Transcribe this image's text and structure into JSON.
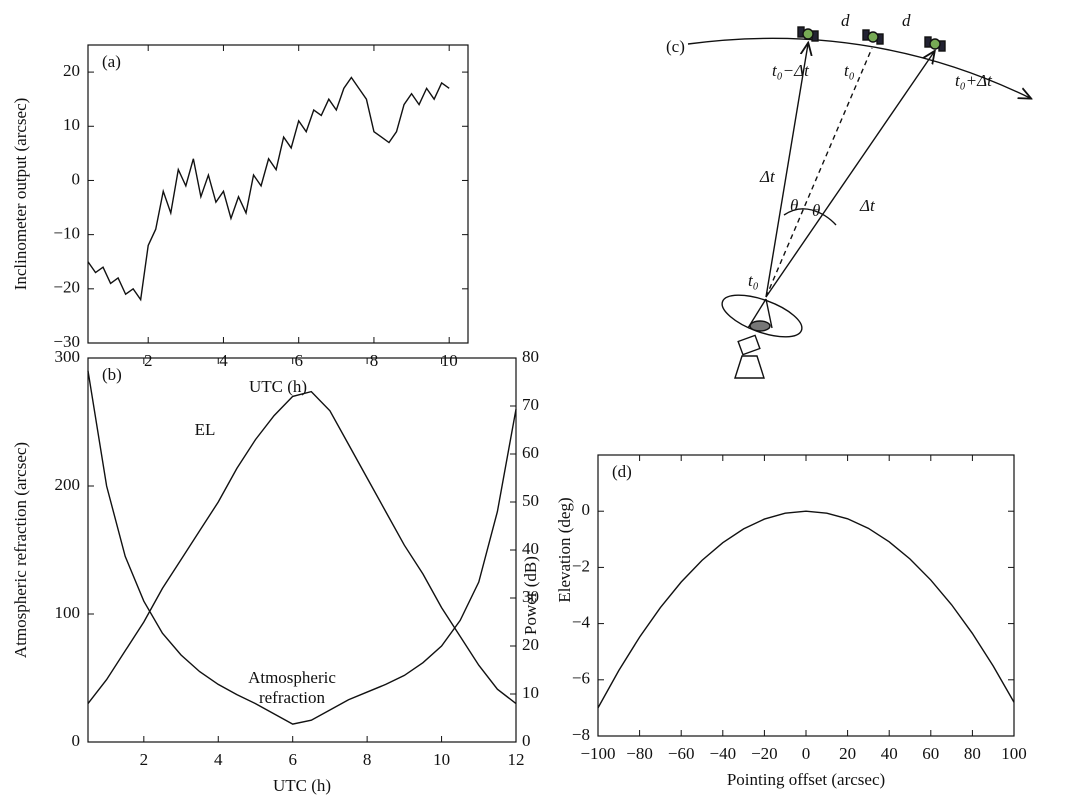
{
  "chart_data": [
    {
      "type": "line",
      "panel_label": "(a)",
      "x_label": "UTC (h)",
      "y_label": "Inclinometer output (arcsec)",
      "xlim": [
        0.4,
        10.5
      ],
      "xticks": [
        2,
        4,
        6,
        8,
        10
      ],
      "ylim": [
        -30,
        25
      ],
      "yticks": [
        {
          "value": -30,
          "label": "−30"
        },
        {
          "value": -20,
          "label": "−20"
        },
        {
          "value": -10,
          "label": "−10"
        },
        0,
        10,
        20
      ],
      "x": [
        0.4,
        0.6,
        0.8,
        1.0,
        1.2,
        1.4,
        1.6,
        1.8,
        2.0,
        2.2,
        2.4,
        2.6,
        2.8,
        3.0,
        3.2,
        3.4,
        3.6,
        3.8,
        4.0,
        4.2,
        4.4,
        4.6,
        4.8,
        5.0,
        5.2,
        5.4,
        5.6,
        5.8,
        6.0,
        6.2,
        6.4,
        6.6,
        6.8,
        7.0,
        7.2,
        7.4,
        7.6,
        7.8,
        8.0,
        8.2,
        8.4,
        8.6,
        8.8,
        9.0,
        9.2,
        9.4,
        9.6,
        9.8,
        10.0
      ],
      "series": [
        {
          "color": "#111111",
          "values": [
            -15,
            -17,
            -16,
            -19,
            -18,
            -21,
            -20,
            -22,
            -12,
            -9,
            -2,
            -6,
            2,
            -1,
            4,
            -3,
            1,
            -4,
            -2,
            -7,
            -3,
            -6,
            1,
            -1,
            4,
            2,
            8,
            6,
            11,
            9,
            13,
            12,
            15,
            13,
            17,
            19,
            17,
            15,
            9,
            8,
            7,
            9,
            14,
            16,
            14,
            17,
            15,
            18,
            17
          ]
        }
      ]
    },
    {
      "type": "line",
      "panel_label": "(b)",
      "x_label": "UTC (h)",
      "y_label": "Atmospheric refraction (arcsec)",
      "y2_label": "Elevation (deg)",
      "xlim": [
        0.5,
        12
      ],
      "xticks": [
        2,
        4,
        6,
        8,
        10,
        12
      ],
      "ylim": [
        0,
        300
      ],
      "yticks": [
        0,
        100,
        200,
        300
      ],
      "y2lim": [
        0,
        80
      ],
      "y2ticks": [
        0,
        10,
        20,
        30,
        40,
        50,
        60,
        70,
        80
      ],
      "x": [
        0.5,
        1,
        1.5,
        2,
        2.5,
        3,
        3.5,
        4,
        4.5,
        5,
        5.5,
        6,
        6.5,
        7,
        7.5,
        8,
        8.5,
        9,
        9.5,
        10,
        10.5,
        11,
        11.5,
        12
      ],
      "series": [
        {
          "name": "Atmospheric refraction",
          "color": "#111111",
          "values": [
            290,
            200,
            145,
            110,
            85,
            68,
            55,
            45,
            37,
            30,
            22,
            14,
            17,
            25,
            33,
            39,
            45,
            52,
            62,
            75,
            95,
            125,
            180,
            260
          ]
        },
        {
          "name": "EL",
          "color": "#111111",
          "axis": "y2",
          "values": [
            8,
            13,
            19,
            25,
            32,
            38,
            44,
            50,
            57,
            63,
            68,
            72,
            73,
            69,
            62,
            55,
            48,
            41,
            35,
            28,
            22,
            16,
            11,
            8
          ]
        }
      ]
    },
    {
      "type": "line",
      "panel_label": "(d)",
      "x_label": "Pointing offset (arcsec)",
      "y_label": "Power (dB)",
      "xlim": [
        -100,
        100
      ],
      "xticks": [
        {
          "value": -100,
          "label": "−100"
        },
        {
          "value": -80,
          "label": "−80"
        },
        {
          "value": -60,
          "label": "−60"
        },
        {
          "value": -40,
          "label": "−40"
        },
        {
          "value": -20,
          "label": "−20"
        },
        0,
        20,
        40,
        60,
        80,
        100
      ],
      "ylim": [
        -8,
        2
      ],
      "yticks": [
        {
          "value": -8,
          "label": "−8"
        },
        {
          "value": -6,
          "label": "−6"
        },
        {
          "value": -4,
          "label": "−4"
        },
        {
          "value": -2,
          "label": "−2"
        },
        0
      ],
      "x": [
        -100,
        -90,
        -80,
        -70,
        -60,
        -50,
        -40,
        -30,
        -20,
        -10,
        0,
        10,
        20,
        30,
        40,
        50,
        60,
        70,
        80,
        90,
        100
      ],
      "series": [
        {
          "color": "#111111",
          "values": [
            -7,
            -5.67,
            -4.48,
            -3.43,
            -2.52,
            -1.75,
            -1.12,
            -0.63,
            -0.28,
            -0.07,
            0,
            -0.07,
            -0.27,
            -0.61,
            -1.09,
            -1.7,
            -2.45,
            -3.33,
            -4.35,
            -5.51,
            -6.8
          ]
        }
      ]
    }
  ],
  "diagram": {
    "panel_label": "(c)",
    "spacing_left": "d",
    "spacing_right": "d",
    "time_before": "t₀−Δt",
    "time_mid": "t₀",
    "time_after": "t₀+Δt",
    "delay_left": "Δt",
    "delay_right": "Δt",
    "angle_left": "θ",
    "angle_right": "θ",
    "time_ground": "t₀"
  }
}
